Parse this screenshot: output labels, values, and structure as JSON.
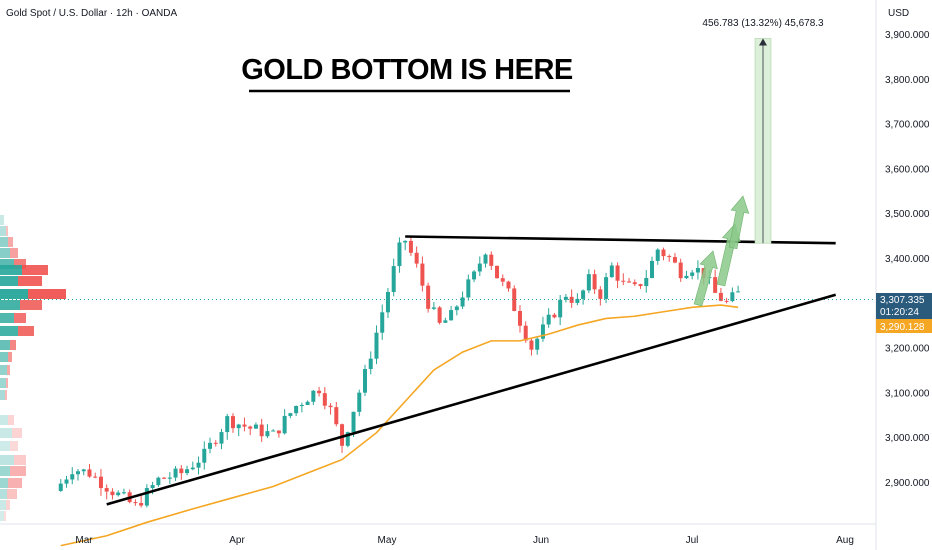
{
  "header": {
    "symbol_text": "Gold Spot / U.S. Dollar · 12h · OANDA"
  },
  "headline": {
    "text": "GOLD BOTTOM IS HERE"
  },
  "price_axis": {
    "currency": "USD",
    "labels": [
      "3,900.000",
      "3,800.000",
      "3,700.000",
      "3,600.000",
      "3,500.000",
      "3,400.000",
      "3,200.000",
      "3,100.000",
      "3,000.000",
      "2,900.000"
    ]
  },
  "time_axis": {
    "labels": [
      "Mar",
      "Apr",
      "May",
      "Jun",
      "Jul",
      "Aug"
    ]
  },
  "price_tags": {
    "last_price": "3,307.335",
    "countdown": "01:20:24",
    "ma_value": "3,290.128"
  },
  "measure": {
    "label": "456.783 (13.32%) 45,678.3"
  },
  "colors": {
    "up": "#26a69a",
    "down": "#ef5350",
    "ma": "#f5a623",
    "tag_blue": "#2a5a7c",
    "tag_orange": "#f5a623",
    "arrow_green": "#8bc98a",
    "measure_fill": "#dcefd9"
  },
  "chart_data": {
    "type": "candlestick",
    "instrument": "Gold Spot / U.S. Dollar",
    "timeframe": "12h",
    "y_range": [
      2760,
      3965
    ],
    "y_ticks": [
      2900,
      3000,
      3100,
      3200,
      3400,
      3500,
      3600,
      3700,
      3800,
      3900
    ],
    "x_ticks": [
      "Mar",
      "Apr",
      "May",
      "Jun",
      "Jul",
      "Aug"
    ],
    "last_price": 3307.335,
    "ma_value": 3290.128,
    "close_path": [
      [
        -4,
        2880
      ],
      [
        -1,
        2930
      ],
      [
        2,
        2920
      ],
      [
        6,
        2880
      ],
      [
        10,
        2845
      ],
      [
        14,
        2905
      ],
      [
        18,
        2920
      ],
      [
        22,
        2960
      ],
      [
        26,
        3040
      ],
      [
        30,
        3020
      ],
      [
        34,
        3005
      ],
      [
        38,
        3070
      ],
      [
        42,
        3110
      ],
      [
        44,
        3060
      ],
      [
        46,
        2985
      ],
      [
        50,
        3140
      ],
      [
        53,
        3280
      ],
      [
        56,
        3420
      ],
      [
        57,
        3440
      ],
      [
        59,
        3380
      ],
      [
        61,
        3300
      ],
      [
        63,
        3250
      ],
      [
        65,
        3270
      ],
      [
        67,
        3320
      ],
      [
        69,
        3360
      ],
      [
        71,
        3420
      ],
      [
        73,
        3360
      ],
      [
        75,
        3320
      ],
      [
        77,
        3260
      ],
      [
        79,
        3200
      ],
      [
        81,
        3240
      ],
      [
        83,
        3280
      ],
      [
        85,
        3320
      ],
      [
        87,
        3300
      ],
      [
        89,
        3350
      ],
      [
        91,
        3320
      ],
      [
        93,
        3380
      ],
      [
        95,
        3340
      ],
      [
        97,
        3330
      ],
      [
        99,
        3360
      ],
      [
        101,
        3420
      ],
      [
        103,
        3400
      ],
      [
        105,
        3370
      ],
      [
        107,
        3380
      ],
      [
        109,
        3365
      ],
      [
        111,
        3320
      ],
      [
        113,
        3300
      ],
      [
        115,
        3320
      ]
    ],
    "moving_average": [
      [
        -3,
        2758
      ],
      [
        5,
        2780
      ],
      [
        12,
        2810
      ],
      [
        20,
        2840
      ],
      [
        27,
        2865
      ],
      [
        34,
        2890
      ],
      [
        41,
        2925
      ],
      [
        46,
        2950
      ],
      [
        52,
        3010
      ],
      [
        57,
        3080
      ],
      [
        62,
        3150
      ],
      [
        67,
        3190
      ],
      [
        72,
        3215
      ],
      [
        77,
        3215
      ],
      [
        82,
        3230
      ],
      [
        87,
        3250
      ],
      [
        92,
        3265
      ],
      [
        97,
        3270
      ],
      [
        102,
        3280
      ],
      [
        107,
        3290
      ],
      [
        112,
        3295
      ],
      [
        115,
        3290
      ]
    ],
    "trendlines": [
      {
        "from": [
          5,
          2850
        ],
        "to": [
          132,
          3318
        ]
      },
      {
        "from": [
          57,
          3448
        ],
        "to": [
          132,
          3433
        ]
      }
    ],
    "measure": {
      "from": 3433,
      "to": 3890,
      "change": 456.783,
      "percent": 13.32,
      "ticks": 45678.3
    }
  }
}
